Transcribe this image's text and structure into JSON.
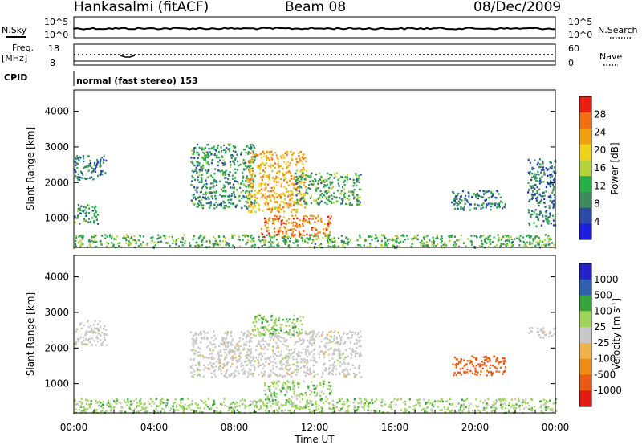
{
  "header": {
    "station": "Hankasalmi (fitACF)",
    "beam": "Beam 08",
    "date": "08/Dec/2009"
  },
  "panel_labels": {
    "nsky": "N.Sky",
    "nsearch": "N.Search",
    "freq_line1": "Freq.",
    "freq_line2": "[MHz]",
    "nave": "Nave",
    "cpid": "CPID",
    "cpid_value": "normal (fast stereo) 153"
  },
  "noise_ticks": {
    "top": "10^5",
    "bottom": "10^0"
  },
  "freq_ticks": {
    "left": [
      "18",
      "8"
    ],
    "right": [
      "60",
      "0"
    ]
  },
  "colors": {
    "power": [
      "#1d1de0",
      "#2b4aa8",
      "#3f8a5b",
      "#27b04a",
      "#b5d33a",
      "#f0d21a",
      "#f0a010",
      "#f26f10",
      "#ea1d10"
    ],
    "velocity": [
      "#e21a10",
      "#ea5a12",
      "#f08b14",
      "#f0b24a",
      "#c8c8c8",
      "#9ed45a",
      "#35a53a",
      "#2f5fb0",
      "#2222c8"
    ],
    "frame": "#000000"
  },
  "chart_data": [
    {
      "type": "heatmap",
      "title": "Power",
      "xlabel": "Time UT",
      "ylabel": "Slant Range [km]",
      "x_tick_labels": [
        "00:00",
        "04:00",
        "08:00",
        "12:00",
        "16:00",
        "20:00",
        "00:00"
      ],
      "xlim": [
        0,
        24
      ],
      "ylim": [
        180,
        4600
      ],
      "y_ticks": [
        1000,
        2000,
        3000,
        4000
      ],
      "colorbar": {
        "label": "Power [dB]",
        "ticks": [
          4,
          8,
          12,
          16,
          20,
          24,
          28
        ],
        "range": [
          0,
          32
        ]
      },
      "echo_regions": [
        {
          "t_start": 0.0,
          "t_end": 1.6,
          "r_min": 2100,
          "r_max": 2800,
          "level_db": 8
        },
        {
          "t_start": 0.0,
          "t_end": 1.2,
          "r_min": 850,
          "r_max": 1400,
          "level_db": 10
        },
        {
          "t_start": 0.0,
          "t_end": 24.0,
          "r_min": 200,
          "r_max": 560,
          "level_db": 12
        },
        {
          "t_start": 5.8,
          "t_end": 9.0,
          "r_min": 1300,
          "r_max": 3100,
          "level_db": 10
        },
        {
          "t_start": 8.6,
          "t_end": 11.6,
          "r_min": 1200,
          "r_max": 2900,
          "level_db": 22
        },
        {
          "t_start": 9.3,
          "t_end": 12.8,
          "r_min": 500,
          "r_max": 1100,
          "level_db": 26
        },
        {
          "t_start": 11.0,
          "t_end": 14.3,
          "r_min": 1400,
          "r_max": 2300,
          "level_db": 11
        },
        {
          "t_start": 18.8,
          "t_end": 21.5,
          "r_min": 1250,
          "r_max": 1800,
          "level_db": 9
        },
        {
          "t_start": 22.6,
          "t_end": 24.0,
          "r_min": 800,
          "r_max": 2700,
          "level_db": 8
        }
      ]
    },
    {
      "type": "heatmap",
      "title": "Velocity",
      "xlabel": "Time UT",
      "ylabel": "Slant Range [km]",
      "x_tick_labels": [
        "00:00",
        "04:00",
        "08:00",
        "12:00",
        "16:00",
        "20:00",
        "00:00"
      ],
      "xlim": [
        0,
        24
      ],
      "ylim": [
        180,
        4600
      ],
      "y_ticks": [
        1000,
        2000,
        3000,
        4000
      ],
      "colorbar": {
        "label": "Velocity [m s^-1]",
        "tick_labels": [
          "1000",
          "500",
          "100",
          "25",
          "-25",
          "-100",
          "-500",
          "-1000"
        ]
      },
      "echo_regions": [
        {
          "t_start": 0.0,
          "t_end": 1.6,
          "r_min": 2100,
          "r_max": 2800,
          "velocity": 0
        },
        {
          "t_start": 0.0,
          "t_end": 24.0,
          "r_min": 200,
          "r_max": 600,
          "velocity": 60
        },
        {
          "t_start": 5.8,
          "t_end": 14.3,
          "r_min": 1200,
          "r_max": 2500,
          "velocity": 0
        },
        {
          "t_start": 8.8,
          "t_end": 11.4,
          "r_min": 2400,
          "r_max": 2950,
          "velocity": 80
        },
        {
          "t_start": 9.4,
          "t_end": 12.8,
          "r_min": 650,
          "r_max": 1100,
          "velocity": 60
        },
        {
          "t_start": 18.8,
          "t_end": 21.5,
          "r_min": 1250,
          "r_max": 1800,
          "velocity": -150
        },
        {
          "t_start": 22.6,
          "t_end": 24.0,
          "r_min": 2300,
          "r_max": 2600,
          "velocity": 0
        }
      ]
    }
  ]
}
